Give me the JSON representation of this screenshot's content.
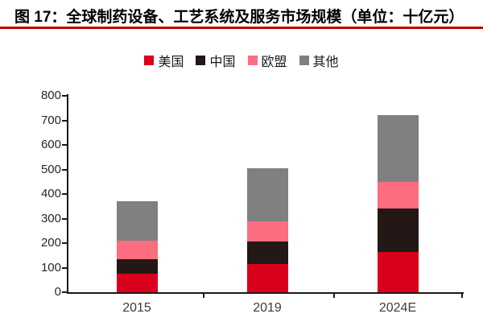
{
  "figure": {
    "title": "图 17：全球制药设备、工艺系统及服务市场规模（单位：十亿元）",
    "underline_color": "#C00000"
  },
  "chart_data": {
    "type": "bar",
    "stacked": true,
    "title": "全球制药设备、工艺系统及服务市场规模",
    "unit": "十亿元",
    "categories": [
      "2015",
      "2019",
      "2024E"
    ],
    "series": [
      {
        "name": "美国",
        "color": "#D9001B",
        "values": [
          75,
          115,
          165
        ]
      },
      {
        "name": "中国",
        "color": "#231815",
        "values": [
          60,
          90,
          175
        ]
      },
      {
        "name": "欧盟",
        "color": "#FC6D7F",
        "values": [
          75,
          85,
          110
        ]
      },
      {
        "name": "其他",
        "color": "#808080",
        "values": [
          160,
          215,
          270
        ]
      }
    ],
    "stack_totals": [
      370,
      505,
      720
    ],
    "ylim": [
      0,
      800
    ],
    "yticks": [
      0,
      100,
      200,
      300,
      400,
      500,
      600,
      700,
      800
    ],
    "xlabel": "",
    "ylabel": "",
    "grid": false,
    "legend_position": "top-center",
    "axis_color": "#1a1a1a"
  }
}
